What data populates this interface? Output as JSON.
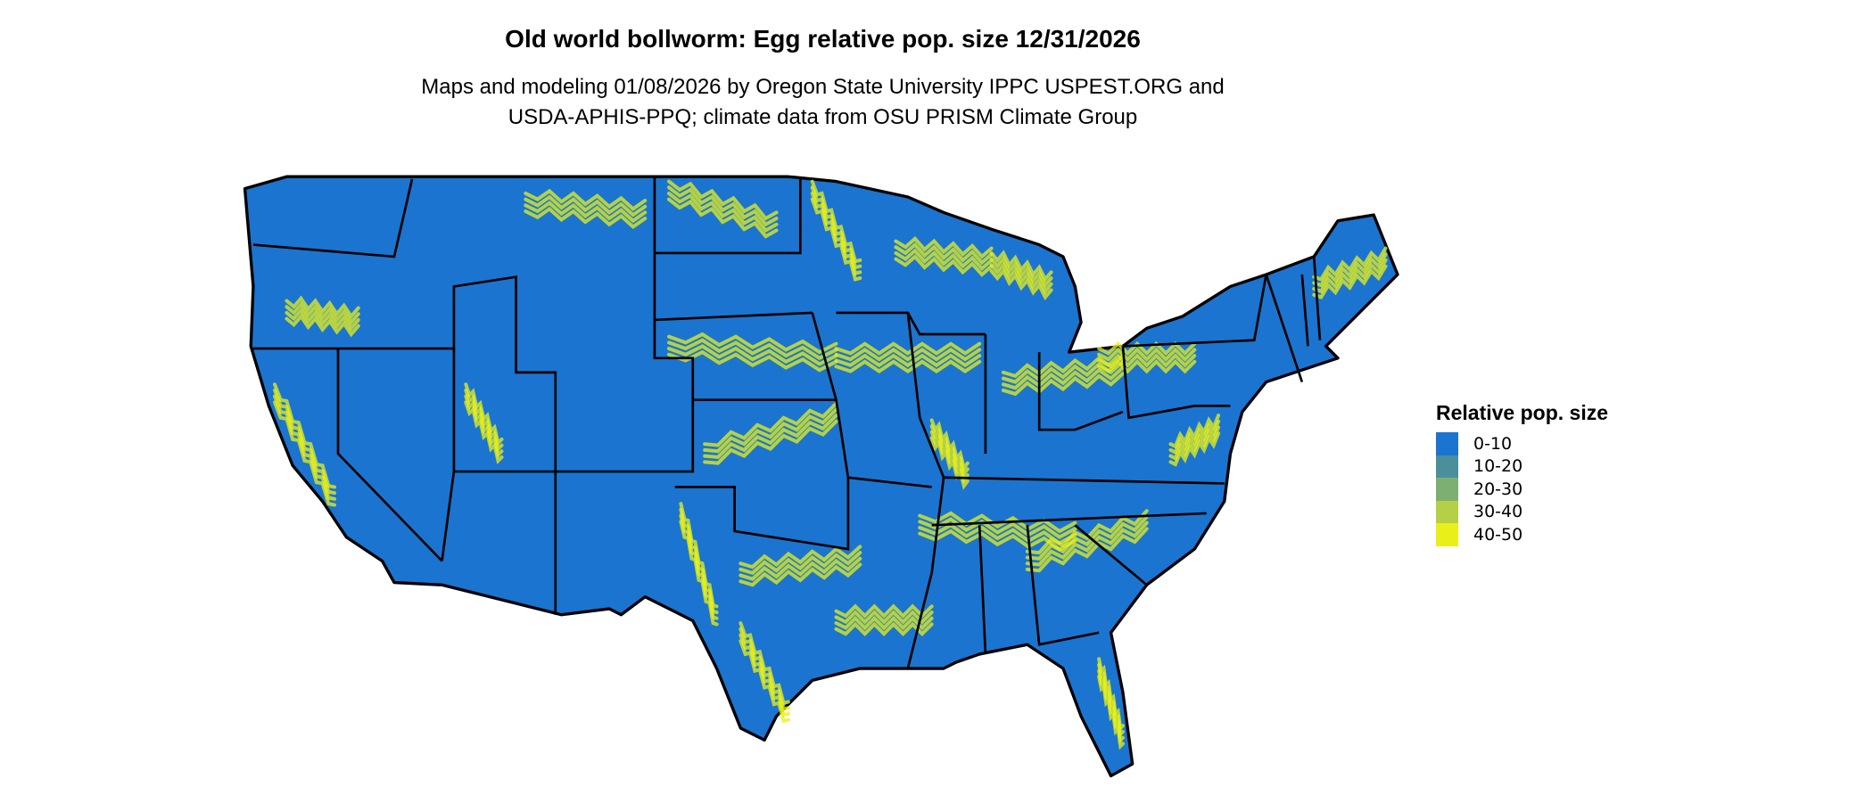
{
  "title": "Old world bollworm: Egg relative pop. size 12/31/2026",
  "subtitle_line1": "Maps and modeling 01/08/2026 by Oregon State University IPPC USPEST.ORG and",
  "subtitle_line2": "USDA-APHIS-PPQ; climate data from OSU PRISM Climate Group",
  "legend": {
    "title": "Relative pop. size",
    "items": [
      {
        "label": "0-10",
        "color": "#1b74cf"
      },
      {
        "label": "10-20",
        "color": "#4a8f9b"
      },
      {
        "label": "20-30",
        "color": "#7eaf72"
      },
      {
        "label": "30-40",
        "color": "#b4d047"
      },
      {
        "label": "40-50",
        "color": "#e8f01a"
      }
    ]
  },
  "map": {
    "region": "contiguous-united-states",
    "base_color": "#1b74cf",
    "border_color": "#000000",
    "highlight_color": "#e8f01a"
  }
}
